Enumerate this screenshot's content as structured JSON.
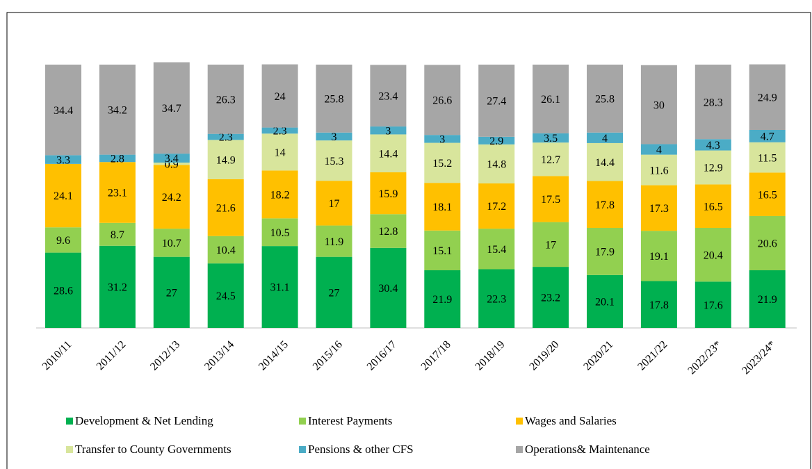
{
  "chart_data": {
    "type": "stacked_bar",
    "categories": [
      "2010/11",
      "2011/12",
      "2012/13",
      "2013/14",
      "2014/15",
      "2015/16",
      "2016/17",
      "2017/18",
      "2018/19",
      "2019/20",
      "2020/21",
      "2021/22",
      "2022/23*",
      "2023/24*"
    ],
    "ylim": [
      0,
      100
    ],
    "series": [
      {
        "name": "Development & Net Lending",
        "color": "#00b050",
        "values": [
          28.6,
          31.2,
          27.0,
          24.5,
          31.1,
          27.0,
          30.4,
          21.9,
          22.3,
          23.2,
          20.1,
          17.8,
          17.6,
          21.9
        ]
      },
      {
        "name": "Interest Payments",
        "color": "#92d050",
        "values": [
          9.6,
          8.7,
          10.7,
          10.4,
          10.5,
          11.9,
          12.8,
          15.1,
          15.4,
          17.0,
          17.9,
          19.1,
          20.4,
          20.6
        ]
      },
      {
        "name": "Wages and Salaries",
        "color": "#ffc000",
        "values": [
          24.1,
          23.1,
          24.2,
          21.6,
          18.2,
          17.0,
          15.9,
          18.1,
          17.2,
          17.5,
          17.8,
          17.3,
          16.5,
          16.5
        ]
      },
      {
        "name": "Transfer to County Governments",
        "color": "#d8e59c",
        "values": [
          null,
          null,
          0.9,
          14.9,
          14.0,
          15.3,
          14.4,
          15.2,
          14.8,
          12.7,
          14.4,
          11.6,
          12.9,
          11.5
        ]
      },
      {
        "name": "Pensions & other CFS",
        "color": "#4bacc6",
        "values": [
          3.3,
          2.8,
          3.4,
          2.3,
          2.3,
          3.0,
          3.0,
          3.0,
          2.9,
          3.5,
          4.0,
          4.0,
          4.3,
          4.7
        ]
      },
      {
        "name": "Operations& Maintenance",
        "color": "#a6a6a6",
        "values": [
          34.4,
          34.2,
          34.7,
          26.3,
          24.0,
          25.8,
          23.4,
          26.6,
          27.4,
          26.1,
          25.8,
          30.0,
          28.3,
          24.9
        ]
      }
    ]
  }
}
